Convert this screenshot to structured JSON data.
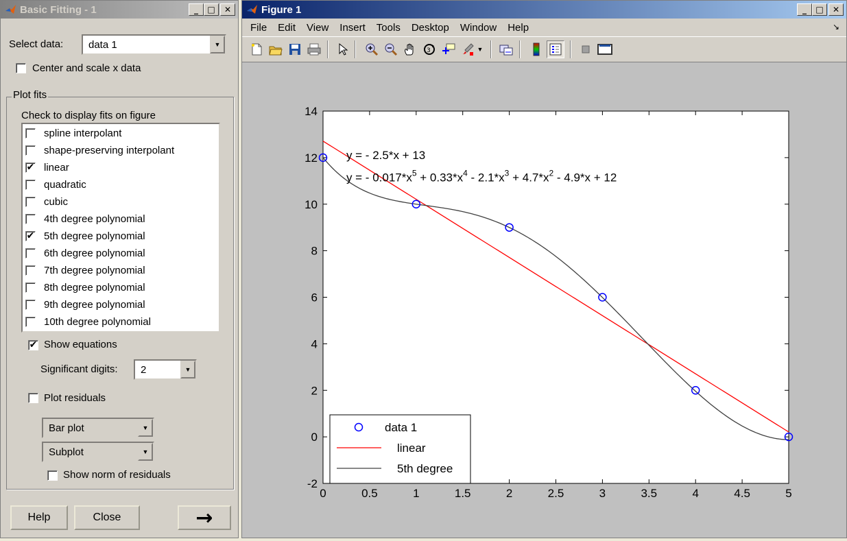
{
  "basic_fitting": {
    "title": "Basic Fitting - 1",
    "select_data_label": "Select data:",
    "select_data_value": "data 1",
    "center_scale_label": "Center and scale x data",
    "center_scale_checked": false,
    "plot_fits_label": "Plot fits",
    "check_display_label": "Check to display fits on figure",
    "fits": [
      {
        "label": "spline interpolant",
        "checked": false
      },
      {
        "label": "shape-preserving interpolant",
        "checked": false
      },
      {
        "label": "linear",
        "checked": true
      },
      {
        "label": "quadratic",
        "checked": false
      },
      {
        "label": "cubic",
        "checked": false
      },
      {
        "label": "4th degree polynomial",
        "checked": false
      },
      {
        "label": "5th degree polynomial",
        "checked": true
      },
      {
        "label": "6th degree polynomial",
        "checked": false
      },
      {
        "label": "7th degree polynomial",
        "checked": false
      },
      {
        "label": "8th degree polynomial",
        "checked": false
      },
      {
        "label": "9th degree polynomial",
        "checked": false
      },
      {
        "label": "10th degree polynomial",
        "checked": false
      }
    ],
    "show_equations_label": "Show equations",
    "show_equations_checked": true,
    "sig_digits_label": "Significant digits:",
    "sig_digits_value": "2",
    "plot_residuals_label": "Plot residuals",
    "plot_residuals_checked": false,
    "residual_plot_type": "Bar plot",
    "residual_location": "Subplot",
    "show_norm_label": "Show norm of residuals",
    "show_norm_checked": false,
    "help_label": "Help",
    "close_label": "Close",
    "next_arrow": "→"
  },
  "figure": {
    "title": "Figure 1",
    "menus": [
      "File",
      "Edit",
      "View",
      "Insert",
      "Tools",
      "Desktop",
      "Window",
      "Help"
    ],
    "toolbar_icons": [
      "new-figure-icon",
      "open-file-icon",
      "save-icon",
      "print-icon",
      "edit-plot-arrow-icon",
      "zoom-in-icon",
      "zoom-out-icon",
      "pan-hand-icon",
      "rotate-3d-icon",
      "data-cursor-icon",
      "brush-icon",
      "brush-dropdown-icon",
      "link-plot-icon",
      "colorbar-icon",
      "legend-icon",
      "hide-plot-tools-icon",
      "show-plot-tools-icon"
    ]
  },
  "chart_data": {
    "type": "scatter",
    "title": "",
    "xlabel": "",
    "ylabel": "",
    "xlim": [
      0,
      5
    ],
    "ylim": [
      -2,
      14
    ],
    "xticks": [
      0,
      0.5,
      1,
      1.5,
      2,
      2.5,
      3,
      3.5,
      4,
      4.5,
      5
    ],
    "yticks": [
      -2,
      0,
      2,
      4,
      6,
      8,
      10,
      12,
      14
    ],
    "grid": false,
    "series": [
      {
        "name": "data 1",
        "kind": "markers",
        "marker": "circle",
        "color": "#0000ff",
        "x": [
          0,
          1,
          2,
          3,
          4,
          5
        ],
        "y": [
          12,
          10,
          9,
          6,
          2,
          0
        ]
      },
      {
        "name": "linear",
        "kind": "line",
        "color": "#ff0000",
        "coefficients": [
          -2.5,
          12.71
        ]
      },
      {
        "name": "5th degree",
        "kind": "line",
        "color": "#404040",
        "coefficients": [
          -0.0167,
          0.3333,
          -2.0833,
          4.6667,
          -4.9,
          12
        ]
      }
    ],
    "legend": {
      "position": "bottom-left",
      "entries": [
        "data 1",
        "linear",
        "5th degree"
      ]
    },
    "equations": {
      "linear": "y = - 2.5*x + 13",
      "poly5": {
        "p1": "y = - 0.017*x",
        "e1": "5",
        "p2": " + 0.33*x",
        "e2": "4",
        "p3": " - 2.1*x",
        "e3": "3",
        "p4": " + 4.7*x",
        "e4": "2",
        "p5": " - 4.9*x + 12"
      }
    }
  }
}
